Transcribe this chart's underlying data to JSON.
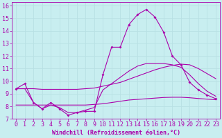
{
  "background_color": "#c8eef0",
  "line_color": "#aa00aa",
  "grid_color": "#b8e0e4",
  "xlabel": "Windchill (Refroidissement éolien,°C)",
  "xlabel_fontsize": 6.0,
  "tick_fontsize": 6.0,
  "ylabel_ticks": [
    7,
    8,
    9,
    10,
    11,
    12,
    13,
    14,
    15,
    16
  ],
  "xlabel_ticks": [
    0,
    1,
    2,
    3,
    4,
    5,
    6,
    7,
    8,
    9,
    10,
    11,
    12,
    13,
    14,
    15,
    16,
    17,
    18,
    19,
    20,
    21,
    22,
    23
  ],
  "xlim": [
    -0.5,
    23.5
  ],
  "ylim": [
    7,
    16.3
  ],
  "line1_x": [
    0,
    1,
    2,
    3,
    4,
    5,
    6,
    7,
    8,
    9,
    10,
    11,
    12,
    13,
    14,
    15,
    16,
    17,
    18,
    19,
    20,
    21,
    22,
    23
  ],
  "line1_y": [
    9.4,
    9.8,
    8.3,
    7.8,
    8.3,
    7.8,
    7.3,
    7.5,
    7.6,
    7.6,
    10.5,
    12.7,
    12.7,
    14.5,
    15.3,
    15.7,
    15.1,
    13.9,
    12.0,
    11.3,
    9.9,
    9.3,
    8.9,
    8.6
  ],
  "line2_x": [
    0,
    1,
    2,
    3,
    4,
    5,
    6,
    7,
    8,
    9,
    10,
    11,
    12,
    13,
    14,
    15,
    16,
    17,
    18,
    19,
    20,
    21,
    22,
    23
  ],
  "line2_y": [
    9.4,
    9.4,
    9.4,
    9.35,
    9.35,
    9.35,
    9.35,
    9.35,
    9.4,
    9.45,
    9.6,
    9.75,
    9.9,
    10.15,
    10.4,
    10.65,
    10.9,
    11.1,
    11.25,
    11.35,
    11.3,
    11.0,
    10.6,
    10.2
  ],
  "line3_x": [
    0,
    1,
    2,
    3,
    4,
    5,
    6,
    7,
    8,
    9,
    10,
    11,
    12,
    13,
    14,
    15,
    16,
    17,
    18,
    19,
    20,
    21,
    22,
    23
  ],
  "line3_y": [
    8.1,
    8.1,
    8.1,
    8.1,
    8.1,
    8.1,
    8.1,
    8.1,
    8.1,
    8.15,
    8.2,
    8.3,
    8.4,
    8.5,
    8.55,
    8.6,
    8.65,
    8.7,
    8.72,
    8.72,
    8.68,
    8.62,
    8.57,
    8.52
  ],
  "line4_x": [
    0,
    1,
    2,
    3,
    4,
    5,
    6,
    7,
    8,
    9,
    10,
    11,
    12,
    13,
    14,
    15,
    16,
    17,
    18,
    19,
    20,
    21,
    22,
    23
  ],
  "line4_y": [
    9.4,
    9.4,
    8.3,
    7.8,
    8.1,
    7.9,
    7.5,
    7.5,
    7.7,
    7.9,
    9.3,
    9.8,
    10.3,
    10.8,
    11.2,
    11.4,
    11.4,
    11.4,
    11.3,
    11.1,
    10.5,
    9.8,
    9.2,
    8.8
  ]
}
